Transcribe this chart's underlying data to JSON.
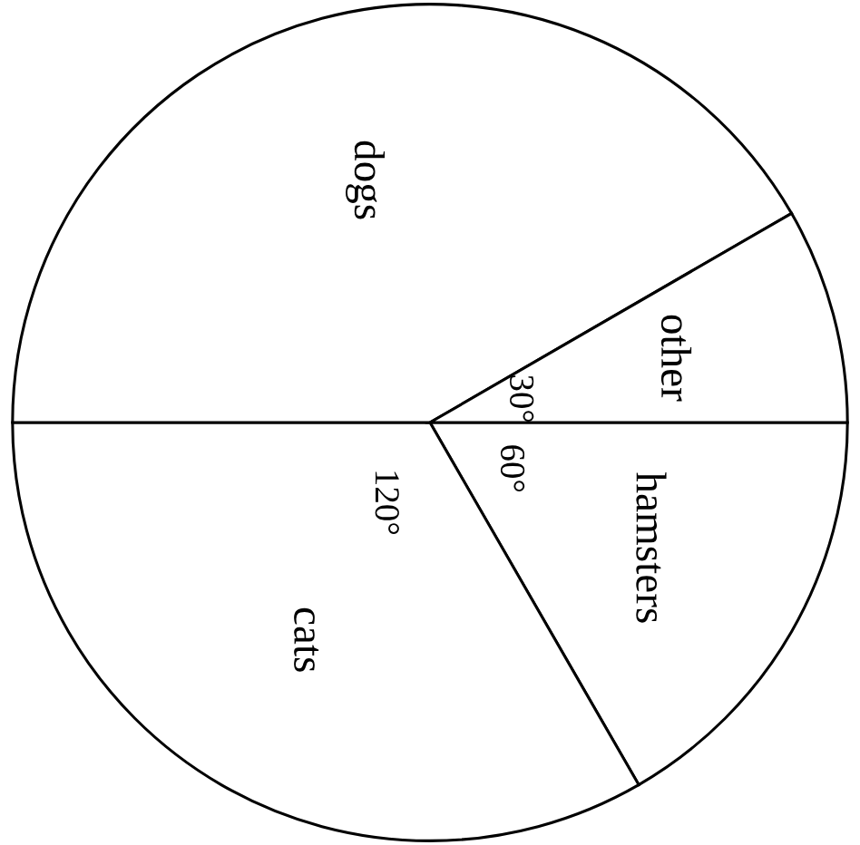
{
  "chart_data": {
    "type": "pie",
    "categories": [
      "hamsters",
      "cats",
      "dogs",
      "other"
    ],
    "values": [
      60,
      120,
      150,
      30
    ],
    "colors": [
      "#ffffff",
      "#ffffff",
      "#ffffff",
      "#ffffff"
    ],
    "value_labels": [
      "60°",
      "120°",
      null,
      "30°"
    ]
  }
}
